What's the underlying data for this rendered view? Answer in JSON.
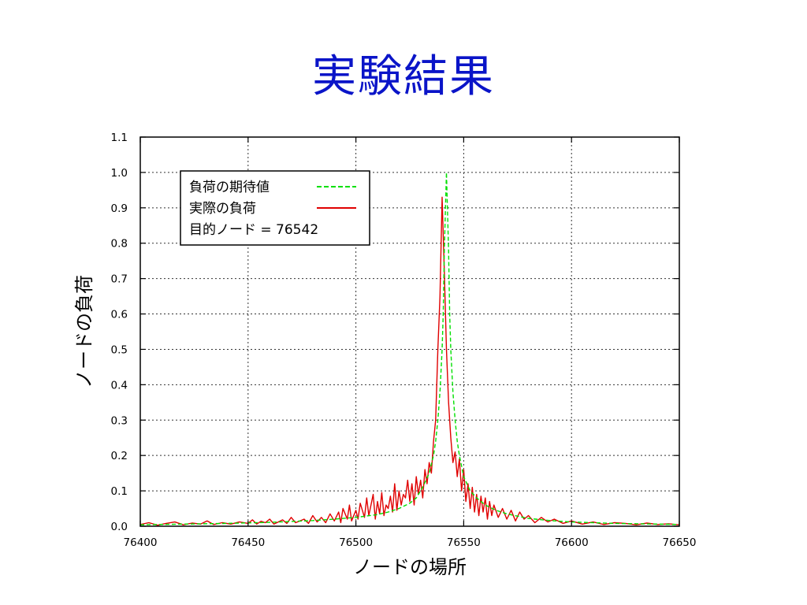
{
  "slide": {
    "title": "実験結果"
  },
  "chart_data": {
    "type": "line",
    "xlabel": "ノードの場所",
    "ylabel": "ノードの負荷",
    "xlim": [
      76400,
      76650
    ],
    "ylim": [
      0.0,
      1.1
    ],
    "xticks": [
      76400,
      76450,
      76500,
      76550,
      76600,
      76650
    ],
    "yticks": [
      0.0,
      0.1,
      0.2,
      0.3,
      0.4,
      0.5,
      0.6,
      0.7,
      0.8,
      0.9,
      1.0,
      1.1
    ],
    "ytick_labels": [
      "0.0",
      "0.1",
      "0.2",
      "0.3",
      "0.4",
      "0.5",
      "0.6",
      "0.7",
      "0.8",
      "0.9",
      "1.0",
      "1.1"
    ],
    "grid": true,
    "legend_position": "top-left",
    "legend_note": "目的ノード = 76542",
    "series": [
      {
        "name": "負荷の期待値",
        "color": "#00e000",
        "style": "dashed",
        "x": [
          76400,
          76420,
          76440,
          76460,
          76480,
          76490,
          76500,
          76510,
          76515,
          76520,
          76525,
          76528,
          76531,
          76534,
          76536,
          76537,
          76538,
          76539,
          76540,
          76540.5,
          76541,
          76542,
          76543,
          76543.5,
          76544,
          76545,
          76546,
          76547,
          76548,
          76550,
          76553,
          76556,
          76560,
          76565,
          76570,
          76580,
          76590,
          76600,
          76620,
          76650
        ],
        "y": [
          0.004,
          0.006,
          0.008,
          0.011,
          0.016,
          0.02,
          0.025,
          0.033,
          0.04,
          0.05,
          0.065,
          0.08,
          0.11,
          0.15,
          0.2,
          0.24,
          0.3,
          0.38,
          0.5,
          0.6,
          0.78,
          1.0,
          0.78,
          0.6,
          0.5,
          0.38,
          0.3,
          0.24,
          0.2,
          0.14,
          0.1,
          0.08,
          0.06,
          0.045,
          0.035,
          0.022,
          0.016,
          0.012,
          0.008,
          0.005
        ]
      },
      {
        "name": "実際の負荷",
        "color": "#e00000",
        "style": "solid",
        "x": [
          76400,
          76404,
          76408,
          76412,
          76416,
          76420,
          76424,
          76428,
          76431,
          76434,
          76438,
          76442,
          76446,
          76450,
          76452,
          76454,
          76456,
          76458,
          76460,
          76462,
          76464,
          76466,
          76468,
          76470,
          76472,
          76474,
          76476,
          76478,
          76480,
          76482,
          76484,
          76486,
          76488,
          76490,
          76492,
          76493,
          76494,
          76496,
          76497,
          76498,
          76500,
          76501,
          76502,
          76504,
          76505,
          76506,
          76508,
          76509,
          76510,
          76511,
          76512,
          76513,
          76514,
          76515,
          76516,
          76517,
          76518,
          76519,
          76520,
          76521,
          76522,
          76523,
          76524,
          76525,
          76526,
          76527,
          76528,
          76529,
          76530,
          76531,
          76532,
          76533,
          76534,
          76535,
          76536,
          76537,
          76538,
          76539,
          76540,
          76541,
          76542,
          76543,
          76544,
          76545,
          76546,
          76547,
          76548,
          76549,
          76550,
          76551,
          76552,
          76553,
          76554,
          76555,
          76556,
          76557,
          76558,
          76559,
          76560,
          76561,
          76562,
          76563,
          76564,
          76566,
          76568,
          76570,
          76572,
          76574,
          76576,
          76578,
          76580,
          76583,
          76586,
          76589,
          76592,
          76596,
          76600,
          76605,
          76610,
          76615,
          76620,
          76625,
          76630,
          76635,
          76640,
          76645,
          76650
        ],
        "y": [
          0.005,
          0.01,
          0.003,
          0.008,
          0.012,
          0.004,
          0.009,
          0.006,
          0.015,
          0.005,
          0.01,
          0.006,
          0.012,
          0.008,
          0.018,
          0.006,
          0.014,
          0.01,
          0.02,
          0.006,
          0.012,
          0.018,
          0.008,
          0.025,
          0.01,
          0.015,
          0.02,
          0.008,
          0.03,
          0.012,
          0.025,
          0.01,
          0.035,
          0.015,
          0.04,
          0.01,
          0.05,
          0.02,
          0.06,
          0.015,
          0.045,
          0.02,
          0.065,
          0.025,
          0.08,
          0.03,
          0.09,
          0.02,
          0.07,
          0.035,
          0.095,
          0.03,
          0.06,
          0.05,
          0.085,
          0.04,
          0.12,
          0.045,
          0.1,
          0.06,
          0.09,
          0.08,
          0.13,
          0.07,
          0.12,
          0.06,
          0.14,
          0.09,
          0.13,
          0.08,
          0.16,
          0.12,
          0.18,
          0.15,
          0.24,
          0.3,
          0.5,
          0.65,
          0.93,
          0.72,
          0.5,
          0.35,
          0.25,
          0.18,
          0.21,
          0.14,
          0.19,
          0.1,
          0.16,
          0.07,
          0.12,
          0.05,
          0.11,
          0.04,
          0.09,
          0.03,
          0.085,
          0.04,
          0.08,
          0.02,
          0.07,
          0.03,
          0.06,
          0.025,
          0.05,
          0.02,
          0.045,
          0.015,
          0.04,
          0.02,
          0.03,
          0.01,
          0.025,
          0.012,
          0.02,
          0.008,
          0.015,
          0.006,
          0.012,
          0.005,
          0.01,
          0.008,
          0.004,
          0.009,
          0.005,
          0.007,
          0.004
        ]
      }
    ]
  }
}
